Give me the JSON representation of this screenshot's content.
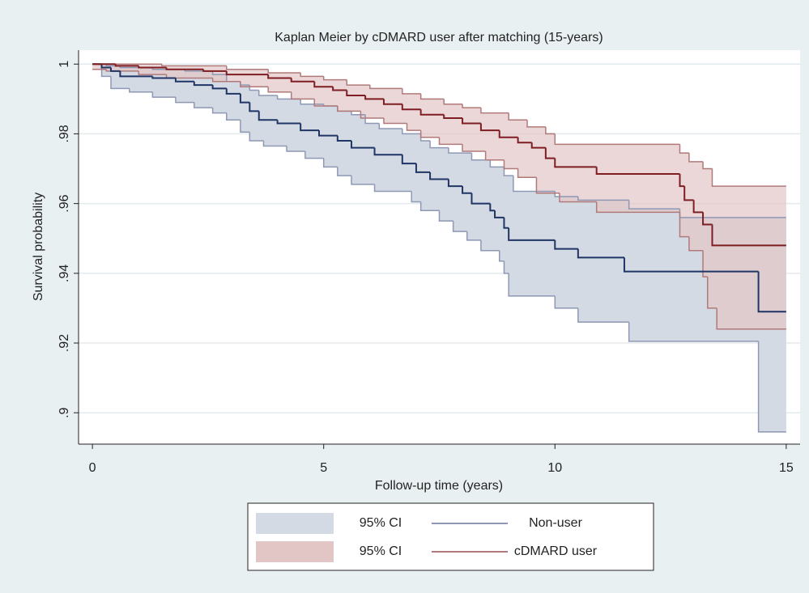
{
  "chart_data": {
    "type": "step",
    "title": "Kaplan Meier by cDMARD user after matching (15-years)",
    "xlabel": "Follow-up time (years)",
    "ylabel": "Survival probability",
    "xlim": [
      -0.3,
      15.3
    ],
    "ylim": [
      0.891,
      1.004
    ],
    "xticks": [
      0,
      5,
      10,
      15
    ],
    "yticks": [
      {
        "value": 0.9,
        "label": ".9"
      },
      {
        "value": 0.92,
        "label": ".92"
      },
      {
        "value": 0.94,
        "label": ".94"
      },
      {
        "value": 0.96,
        "label": ".96"
      },
      {
        "value": 0.98,
        "label": ".98"
      },
      1
    ],
    "grid": true,
    "bands": [
      {
        "name": "95% CI",
        "fill": "#d4dae3",
        "edge_color": "#8e98b5",
        "upper": {
          "x": [
            0,
            0.3,
            0.6,
            1.3,
            2.0,
            2.6,
            2.9,
            3.2,
            3.4,
            3.6,
            4.0,
            4.5,
            5.0,
            5.3,
            5.6,
            5.9,
            6.2,
            6.7,
            7.1,
            7.3,
            7.7,
            8.2,
            8.6,
            8.9,
            9.1,
            10.0,
            10.5,
            11.6,
            12.7,
            15
          ],
          "values": [
            1,
            0.9995,
            0.999,
            0.9985,
            0.998,
            0.997,
            0.995,
            0.994,
            0.9925,
            0.991,
            0.99,
            0.9885,
            0.988,
            0.9865,
            0.9855,
            0.983,
            0.9815,
            0.98,
            0.978,
            0.976,
            0.9745,
            0.9725,
            0.9705,
            0.968,
            0.9635,
            0.962,
            0.961,
            0.9585,
            0.956,
            0.956
          ]
        },
        "lower": {
          "x": [
            0,
            0.2,
            0.4,
            0.8,
            1.3,
            1.8,
            2.2,
            2.6,
            2.9,
            3.2,
            3.4,
            3.7,
            4.2,
            4.6,
            5.0,
            5.3,
            5.6,
            6.1,
            6.9,
            7.1,
            7.5,
            7.8,
            8.1,
            8.4,
            8.8,
            8.9,
            9.0,
            10.0,
            10.5,
            11.6,
            14.4,
            15
          ],
          "values": [
            1,
            0.9965,
            0.993,
            0.992,
            0.9905,
            0.989,
            0.9875,
            0.986,
            0.984,
            0.9805,
            0.978,
            0.9765,
            0.975,
            0.973,
            0.9705,
            0.968,
            0.9655,
            0.9635,
            0.9605,
            0.958,
            0.955,
            0.952,
            0.9495,
            0.9465,
            0.9435,
            0.94,
            0.9335,
            0.93,
            0.926,
            0.9205,
            0.8945,
            0.8945
          ]
        }
      },
      {
        "name": "95% CI",
        "fill": "#e2c6c6",
        "edge_color": "#b07a7a",
        "upper": {
          "x": [
            0,
            1.5,
            2.9,
            3.8,
            4.5,
            5.0,
            5.5,
            6.0,
            6.7,
            7.1,
            7.6,
            8.0,
            8.4,
            9.0,
            9.4,
            9.8,
            10.0,
            12.7,
            12.9,
            13.2,
            13.4,
            15
          ],
          "values": [
            1,
            0.9995,
            0.9985,
            0.9975,
            0.9965,
            0.9955,
            0.994,
            0.993,
            0.9915,
            0.99,
            0.9885,
            0.9875,
            0.986,
            0.984,
            0.982,
            0.98,
            0.977,
            0.9745,
            0.972,
            0.97,
            0.965,
            0.965
          ]
        },
        "lower": {
          "x": [
            0,
            0.3,
            1.0,
            1.6,
            2.6,
            3.2,
            3.8,
            4.3,
            4.8,
            5.3,
            5.8,
            6.3,
            6.8,
            7.1,
            7.5,
            8.0,
            8.5,
            8.9,
            9.2,
            9.6,
            10.1,
            10.9,
            12.7,
            12.9,
            13.2,
            13.3,
            13.5,
            15
          ],
          "values": [
            0.9985,
            0.998,
            0.997,
            0.996,
            0.995,
            0.9935,
            0.992,
            0.99,
            0.988,
            0.9865,
            0.9845,
            0.983,
            0.981,
            0.979,
            0.977,
            0.975,
            0.9725,
            0.97,
            0.9675,
            0.963,
            0.9605,
            0.9575,
            0.9505,
            0.9465,
            0.939,
            0.93,
            0.924,
            0.924
          ]
        }
      }
    ],
    "series": [
      {
        "name": "Non-user",
        "color": "#1f3566",
        "x": [
          0,
          0.2,
          0.4,
          0.6,
          1.3,
          1.8,
          2.2,
          2.6,
          2.9,
          3.2,
          3.4,
          3.6,
          4.0,
          4.5,
          4.9,
          5.3,
          5.6,
          6.1,
          6.7,
          7.0,
          7.3,
          7.7,
          8.0,
          8.2,
          8.6,
          8.7,
          8.9,
          9.0,
          10.0,
          10.5,
          11.5,
          14.4,
          15
        ],
        "values": [
          1,
          0.999,
          0.998,
          0.9965,
          0.996,
          0.995,
          0.994,
          0.993,
          0.9915,
          0.989,
          0.9865,
          0.984,
          0.983,
          0.981,
          0.9795,
          0.978,
          0.976,
          0.974,
          0.9715,
          0.969,
          0.967,
          0.965,
          0.963,
          0.96,
          0.958,
          0.956,
          0.953,
          0.9495,
          0.947,
          0.9445,
          0.9405,
          0.929,
          0.929
        ]
      },
      {
        "name": "cDMARD user",
        "color": "#7e1e22",
        "x": [
          0,
          0.5,
          1.0,
          1.6,
          2.4,
          2.9,
          3.8,
          4.3,
          4.8,
          5.2,
          5.5,
          5.9,
          6.3,
          6.7,
          7.1,
          7.6,
          8.0,
          8.4,
          8.8,
          9.2,
          9.5,
          9.8,
          10.0,
          10.9,
          12.7,
          12.8,
          13.0,
          13.2,
          13.4,
          15
        ],
        "values": [
          1,
          0.9995,
          0.999,
          0.9985,
          0.998,
          0.997,
          0.996,
          0.995,
          0.9935,
          0.9925,
          0.991,
          0.99,
          0.9885,
          0.987,
          0.9855,
          0.9845,
          0.983,
          0.981,
          0.979,
          0.9775,
          0.976,
          0.973,
          0.9705,
          0.9685,
          0.965,
          0.961,
          0.9575,
          0.954,
          0.948,
          0.948
        ]
      }
    ]
  }
}
